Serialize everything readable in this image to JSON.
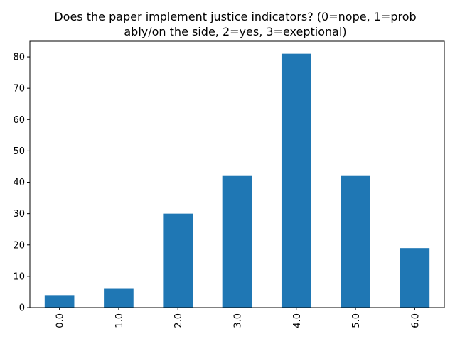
{
  "chart_data": {
    "type": "bar",
    "title_lines": [
      "Does the paper implement justice indicators? (0=nope, 1=prob",
      "ably/on the side, 2=yes, 3=exeptional)"
    ],
    "categories": [
      "0.0",
      "1.0",
      "2.0",
      "3.0",
      "4.0",
      "5.0",
      "6.0"
    ],
    "values": [
      4,
      6,
      30,
      42,
      81,
      42,
      19
    ],
    "xlabel": "",
    "ylabel": "",
    "ylim": [
      0,
      85
    ],
    "yticks": [
      0,
      10,
      20,
      30,
      40,
      50,
      60,
      70,
      80
    ],
    "bar_color": "#1f77b4",
    "grid": false,
    "legend": "none",
    "xtick_rotation": "vertical"
  }
}
